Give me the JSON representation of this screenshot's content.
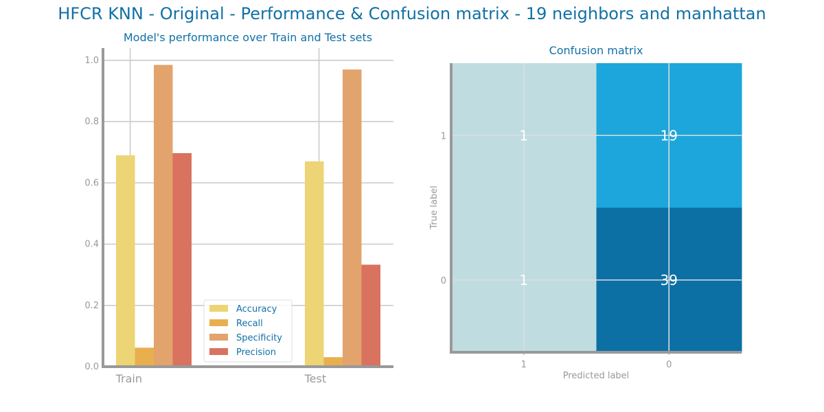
{
  "title": "HFCR KNN - Original - Performance & Confusion matrix - 19 neighbors and manhattan",
  "colors": {
    "accuracy": "#EDD474",
    "recall": "#E9AF4F",
    "specificity": "#E2A36C",
    "precision": "#D9725E",
    "cm_low": "#BFDDE1",
    "cm_mid": "#1CA6DC",
    "cm_high": "#0C70A5"
  },
  "chart_data": [
    {
      "type": "bar",
      "title": "Model's performance over Train and Test sets",
      "categories": [
        "Train",
        "Test"
      ],
      "series": [
        {
          "name": "Accuracy",
          "values": [
            0.69,
            0.67
          ]
        },
        {
          "name": "Recall",
          "values": [
            0.062,
            0.031
          ]
        },
        {
          "name": "Specificity",
          "values": [
            0.985,
            0.97
          ]
        },
        {
          "name": "Precision",
          "values": [
            0.697,
            0.333
          ]
        }
      ],
      "ylim": [
        0,
        1.04
      ],
      "yticks": [
        "0.0",
        "0.2",
        "0.4",
        "0.6",
        "0.8",
        "1.0"
      ],
      "grid": true,
      "legend": "bottom-right"
    },
    {
      "type": "heatmap",
      "title": "Confusion matrix",
      "xlabel": "Predicted label",
      "ylabel": "True label",
      "x_categories": [
        "1",
        "0"
      ],
      "y_categories": [
        "1",
        "0"
      ],
      "values": [
        [
          1,
          19
        ],
        [
          1,
          39
        ]
      ],
      "grid": true
    }
  ]
}
